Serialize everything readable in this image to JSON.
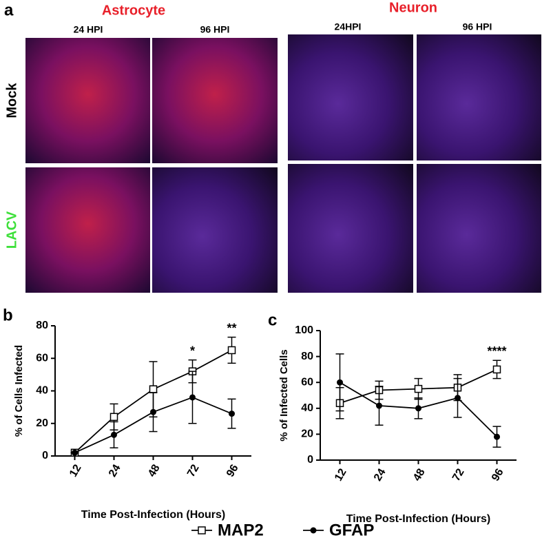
{
  "panel_a": {
    "label": "a",
    "groups": [
      {
        "title": "Astrocyte",
        "columns": [
          "24 HPI",
          "96 HPI"
        ]
      },
      {
        "title": "Neuron",
        "columns": [
          "24HPI",
          "96 HPI"
        ]
      }
    ],
    "rows": [
      "Mock",
      "LACV"
    ]
  },
  "chart_data": [
    {
      "type": "line",
      "panel": "b",
      "y_label": "% of Cells Infected",
      "x_label": "Time Post-Infection (Hours)",
      "categories": [
        "12",
        "24",
        "48",
        "72",
        "96"
      ],
      "ylim": [
        0,
        80
      ],
      "yticks": [
        0,
        20,
        40,
        60,
        80
      ],
      "series": [
        {
          "name": "MAP2",
          "color": "#000000",
          "marker": "open-square",
          "values": [
            2,
            24,
            41,
            52,
            65
          ],
          "errors": [
            0,
            8,
            17,
            7,
            8
          ]
        },
        {
          "name": "GFAP",
          "color": "#000000",
          "marker": "filled-circle",
          "values": [
            2,
            13,
            27,
            36,
            26
          ],
          "errors": [
            0,
            8,
            12,
            16,
            9
          ]
        }
      ],
      "annotations": [
        {
          "text": "*",
          "x": "72"
        },
        {
          "text": "**",
          "x": "96"
        }
      ]
    },
    {
      "type": "line",
      "panel": "c",
      "y_label": "% of Infected Cells",
      "x_label": "Time Post-Infection (Hours)",
      "categories": [
        "12",
        "24",
        "48",
        "72",
        "96"
      ],
      "ylim": [
        0,
        100
      ],
      "yticks": [
        0,
        20,
        40,
        60,
        80,
        100
      ],
      "series": [
        {
          "color": "#000000",
          "marker": "open-square",
          "values": [
            44,
            54,
            55,
            56,
            70
          ],
          "errors": [
            12,
            7,
            8,
            10,
            7
          ]
        },
        {
          "color": "#000000",
          "marker": "filled-circle",
          "values": [
            60,
            42,
            40,
            48,
            18
          ],
          "errors": [
            22,
            15,
            8,
            15,
            8
          ]
        }
      ],
      "annotations": [
        {
          "text": "****",
          "x": "96"
        }
      ]
    }
  ]
}
